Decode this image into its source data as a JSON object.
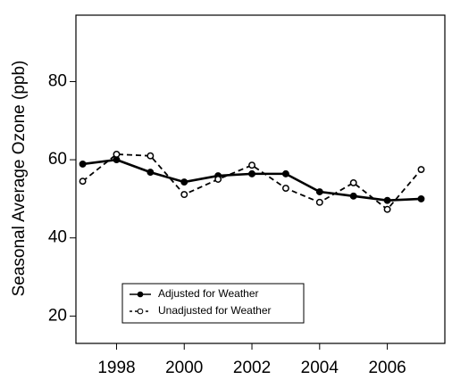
{
  "chart_data": {
    "type": "line",
    "ylabel": "Seasonal Average Ozone (ppb)",
    "x": [
      1997,
      1998,
      1999,
      2000,
      2001,
      2002,
      2003,
      2004,
      2005,
      2006,
      2007
    ],
    "series": [
      {
        "name": "Adjusted for Weather",
        "color": "#000000",
        "dash": "solid",
        "marker": "filled",
        "values": [
          58.9,
          60,
          56.8,
          54.3,
          55.9,
          56.4,
          56.4,
          51.8,
          50.7,
          49.6,
          50
        ]
      },
      {
        "name": "Unadjusted for Weather",
        "color": "#000000",
        "dash": "dashed",
        "marker": "open",
        "values": [
          54.5,
          61.4,
          61,
          51.1,
          55,
          58.6,
          52.7,
          49.1,
          54.1,
          47.3,
          57.5
        ]
      }
    ],
    "xlim": [
      1996.8,
      2007.7
    ],
    "xticks": [
      1998,
      2000,
      2002,
      2004,
      2006
    ],
    "ylim": [
      13,
      97
    ],
    "yticks": [
      20,
      40,
      60,
      80
    ],
    "grid": false,
    "legend": "lower left"
  }
}
